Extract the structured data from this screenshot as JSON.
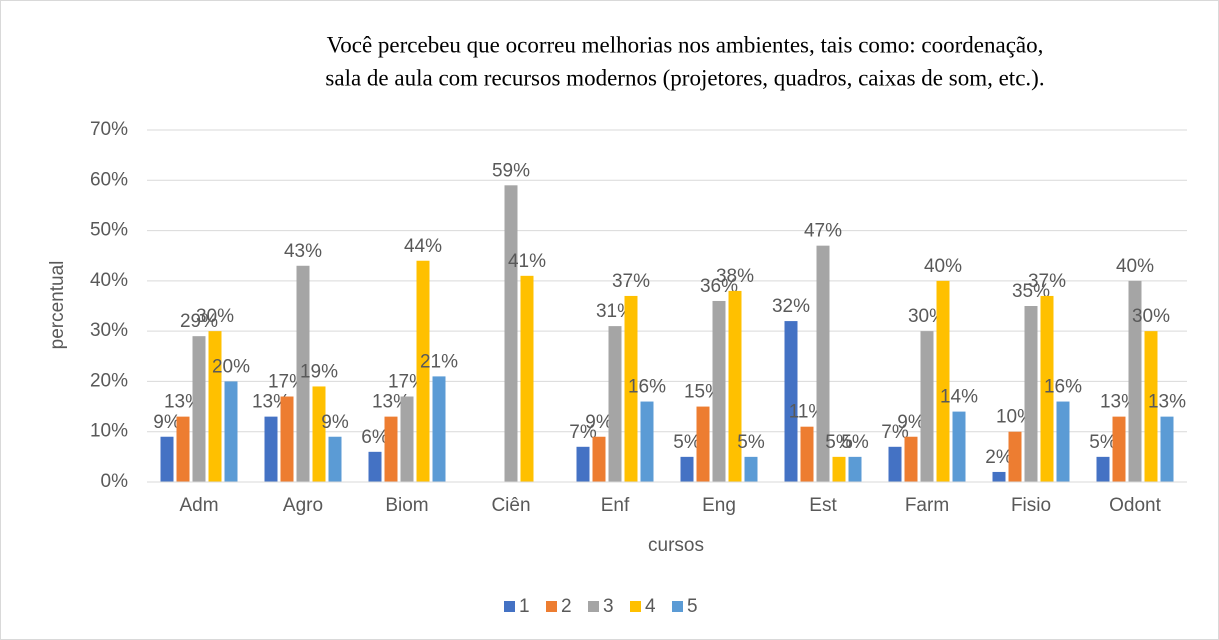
{
  "chart_data": {
    "type": "bar",
    "title": [
      "Você percebeu que ocorreu melhorias nos ambientes, tais como: coordenação,",
      "sala de aula com recursos modernos (projetores, quadros, caixas de som, etc.)."
    ],
    "x_label": "cursos",
    "y_label": "percentual",
    "categories": [
      "Adm",
      "Agro",
      "Biom",
      "Ciên",
      "Enf",
      "Eng",
      "Est",
      "Farm",
      "Fisio",
      "Odont"
    ],
    "series": [
      {
        "name": "1",
        "color": "#4472c4",
        "values": [
          9,
          13,
          6,
          null,
          7,
          5,
          32,
          7,
          2,
          5
        ],
        "value_labels": [
          "9%",
          "13%",
          "6%",
          null,
          "7%",
          "5%",
          "32%",
          "7%",
          "2%",
          "5%"
        ]
      },
      {
        "name": "2",
        "color": "#ed7d31",
        "values": [
          13,
          17,
          13,
          null,
          9,
          15,
          11,
          9,
          10,
          13
        ],
        "value_labels": [
          "13%",
          "17%",
          "13%",
          null,
          "9%",
          "15%",
          "11%",
          "9%",
          "10%",
          "13%"
        ]
      },
      {
        "name": "3",
        "color": "#a5a5a5",
        "values": [
          29,
          43,
          17,
          59,
          31,
          36,
          47,
          30,
          35,
          40
        ],
        "value_labels": [
          "29%",
          "43%",
          "17%",
          "59%",
          "31%",
          "36%",
          "47%",
          "30%",
          "35%",
          "40%"
        ]
      },
      {
        "name": "4",
        "color": "#ffc000",
        "values": [
          30,
          19,
          44,
          41,
          37,
          38,
          5,
          40,
          37,
          30
        ],
        "value_labels": [
          "30%",
          "19%",
          "44%",
          "41%",
          "37%",
          "38%",
          "5%",
          "40%",
          "37%",
          "30%"
        ]
      },
      {
        "name": "5",
        "color": "#5b9bd5",
        "values": [
          20,
          9,
          21,
          null,
          16,
          5,
          5,
          14,
          16,
          13
        ],
        "value_labels": [
          "20%",
          "9%",
          "21%",
          null,
          "16%",
          "5%",
          "5%",
          "14%",
          "16%",
          "13%"
        ]
      }
    ],
    "ylim": [
      0,
      70
    ],
    "yticks": [
      {
        "value": 0,
        "label": "0%"
      },
      {
        "value": 10,
        "label": "10%"
      },
      {
        "value": 20,
        "label": "20%"
      },
      {
        "value": 30,
        "label": "30%"
      },
      {
        "value": 40,
        "label": "40%"
      },
      {
        "value": 50,
        "label": "50%"
      },
      {
        "value": 60,
        "label": "60%"
      },
      {
        "value": 70,
        "label": "70%"
      }
    ],
    "grid": true,
    "legend": "bottom"
  }
}
